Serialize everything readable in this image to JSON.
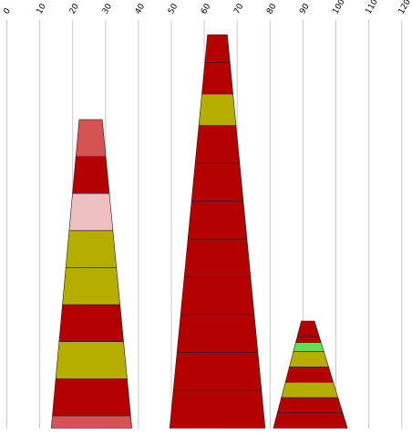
{
  "chart_data": {
    "type": "bar",
    "subtype": "stacked-tapered-columns",
    "x_axis": {
      "ticks": [
        "0",
        "10",
        "20",
        "30",
        "40",
        "50",
        "60",
        "70",
        "80",
        "90",
        "100",
        "110",
        "120"
      ],
      "range": [
        0,
        120
      ],
      "position": "top",
      "tick_rotation": -60,
      "grid": true
    },
    "colors": {
      "red": "#b50000",
      "olive": "#b5ad00",
      "salmon": "#d45454",
      "pink": "#efbfbf",
      "green": "#66dd55"
    },
    "columns": [
      {
        "x_left": 13.5,
        "x_right": 38.0,
        "top_left": 22.0,
        "top_right": 29.0,
        "segments": [
          {
            "value": 1,
            "color": "salmon"
          },
          {
            "value": 3,
            "color": "red"
          },
          {
            "value": 3,
            "color": "olive"
          },
          {
            "value": 3,
            "color": "red"
          },
          {
            "value": 3,
            "color": "olive"
          },
          {
            "value": 3,
            "color": "olive"
          },
          {
            "value": 3,
            "color": "pink"
          },
          {
            "value": 3,
            "color": "red"
          },
          {
            "value": 3,
            "color": "salmon"
          }
        ]
      },
      {
        "x_left": 49.5,
        "x_right": 78.5,
        "top_left": 61.0,
        "top_right": 67.0,
        "segments": [
          {
            "value": 3,
            "color": "red"
          },
          {
            "value": 3,
            "color": "red"
          },
          {
            "value": 3,
            "color": "red"
          },
          {
            "value": 3,
            "color": "red"
          },
          {
            "value": 3,
            "color": "red"
          },
          {
            "value": 3,
            "color": "red"
          },
          {
            "value": 3,
            "color": "red"
          },
          {
            "value": 3,
            "color": "red"
          },
          {
            "value": 2.5,
            "color": "olive"
          },
          {
            "value": 2.5,
            "color": "red"
          },
          {
            "value": 2.2,
            "color": "red"
          }
        ]
      },
      {
        "x_left": 81.0,
        "x_right": 103.5,
        "top_left": 89.5,
        "top_right": 93.5,
        "segments": [
          {
            "value": 1,
            "color": "red"
          },
          {
            "value": 1,
            "color": "red"
          },
          {
            "value": 1,
            "color": "olive"
          },
          {
            "value": 1,
            "color": "red"
          },
          {
            "value": 1,
            "color": "olive"
          },
          {
            "value": 0.6,
            "color": "green"
          },
          {
            "value": 0.4,
            "color": "red"
          },
          {
            "value": 1.0,
            "color": "red"
          }
        ]
      }
    ]
  }
}
